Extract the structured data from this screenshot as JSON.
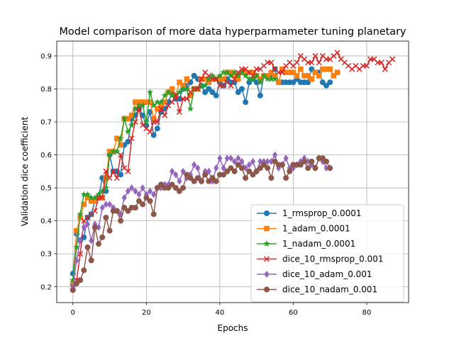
{
  "chart_data": {
    "type": "line",
    "title": "Model comparison of more data hyperparmameter tuning planetary",
    "xlabel": "Epochs",
    "ylabel": "Validation dice coefficient",
    "xlim": [
      -4.4,
      91.4
    ],
    "ylim": [
      0.152,
      0.945
    ],
    "xticks": [
      0,
      20,
      40,
      60,
      80
    ],
    "yticks": [
      0.2,
      0.3,
      0.4,
      0.5,
      0.6,
      0.7,
      0.8,
      0.9
    ],
    "xtick_labels": [
      "0",
      "20",
      "40",
      "60",
      "80"
    ],
    "ytick_labels": [
      "0.2",
      "0.3",
      "0.4",
      "0.5",
      "0.6",
      "0.7",
      "0.8",
      "0.9"
    ],
    "grid": true,
    "legend_position": "lower right",
    "series": [
      {
        "name": "1_rmsprop_0.0001",
        "color": "#1f77b4",
        "marker": "circle",
        "values": [
          0.24,
          0.36,
          0.34,
          0.35,
          0.41,
          0.42,
          0.46,
          0.47,
          0.53,
          0.49,
          0.6,
          0.55,
          0.55,
          0.54,
          0.63,
          0.64,
          0.71,
          0.72,
          0.74,
          0.72,
          0.69,
          0.73,
          0.66,
          0.68,
          0.73,
          0.74,
          0.76,
          0.79,
          0.77,
          0.77,
          0.8,
          0.81,
          0.82,
          0.84,
          0.83,
          0.81,
          0.79,
          0.8,
          0.79,
          0.78,
          0.82,
          0.81,
          0.83,
          0.82,
          0.82,
          0.79,
          0.8,
          0.76,
          0.82,
          0.83,
          0.82,
          0.78,
          0.84,
          0.84,
          0.84,
          0.86,
          0.82,
          0.82,
          0.82,
          0.82,
          0.82,
          0.83,
          0.82,
          0.82,
          0.82,
          0.86,
          0.85,
          0.85,
          0.82,
          0.81,
          0.82
        ]
      },
      {
        "name": "1_adam_0.0001",
        "color": "#ff7f0e",
        "marker": "square",
        "values": [
          0.21,
          0.37,
          0.41,
          0.45,
          0.47,
          0.46,
          0.46,
          0.47,
          0.47,
          0.53,
          0.61,
          0.61,
          0.65,
          0.63,
          0.71,
          0.71,
          0.72,
          0.76,
          0.76,
          0.76,
          0.76,
          0.76,
          0.71,
          0.74,
          0.75,
          0.76,
          0.79,
          0.8,
          0.78,
          0.82,
          0.81,
          0.83,
          0.78,
          0.8,
          0.8,
          0.83,
          0.83,
          0.82,
          0.83,
          0.83,
          0.83,
          0.83,
          0.85,
          0.85,
          0.84,
          0.83,
          0.85,
          0.85,
          0.85,
          0.85,
          0.84,
          0.83,
          0.84,
          0.84,
          0.85,
          0.84,
          0.82,
          0.86,
          0.85,
          0.85,
          0.85,
          0.84,
          0.86,
          0.84,
          0.84,
          0.83,
          0.85,
          0.84,
          0.86,
          0.86,
          0.86,
          0.84,
          0.85
        ]
      },
      {
        "name": "1_nadam_0.0001",
        "color": "#2ca02c",
        "marker": "star",
        "values": [
          0.22,
          0.32,
          0.42,
          0.48,
          0.48,
          0.47,
          0.47,
          0.48,
          0.49,
          0.5,
          0.6,
          0.61,
          0.61,
          0.65,
          0.71,
          0.67,
          0.69,
          0.74,
          0.75,
          0.75,
          0.7,
          0.79,
          0.75,
          0.76,
          0.76,
          0.78,
          0.79,
          0.78,
          0.78,
          0.79,
          0.8,
          0.8,
          0.74,
          0.8,
          0.8,
          0.81,
          0.81,
          0.83,
          0.84,
          0.83,
          0.84,
          0.85,
          0.85,
          0.84,
          0.85,
          0.84,
          0.85,
          0.84,
          0.83,
          0.83,
          0.84,
          0.82,
          0.84,
          0.83,
          0.83,
          0.83
        ]
      },
      {
        "name": "dice_10_rmsprop_0.001",
        "color": "#d62728",
        "marker": "x",
        "values": [
          0.2,
          0.22,
          0.3,
          0.4,
          0.41,
          0.42,
          0.43,
          0.47,
          0.47,
          0.55,
          0.53,
          0.55,
          0.53,
          0.6,
          0.56,
          0.55,
          0.65,
          0.7,
          0.74,
          0.69,
          0.68,
          0.67,
          0.7,
          0.7,
          0.74,
          0.72,
          0.75,
          0.76,
          0.78,
          0.73,
          0.77,
          0.77,
          0.79,
          0.8,
          0.8,
          0.83,
          0.85,
          0.84,
          0.83,
          0.83,
          0.81,
          0.81,
          0.82,
          0.81,
          0.83,
          0.85,
          0.86,
          0.86,
          0.85,
          0.84,
          0.86,
          0.86,
          0.87,
          0.88,
          0.88,
          0.86,
          0.85,
          0.85,
          0.87,
          0.88,
          0.87,
          0.88,
          0.9,
          0.89,
          0.88,
          0.88,
          0.9,
          0.88,
          0.9,
          0.89,
          0.89,
          0.9,
          0.91,
          0.89,
          0.88,
          0.87,
          0.86,
          0.87,
          0.86,
          0.87,
          0.87,
          0.89,
          0.89,
          0.88,
          0.88,
          0.86,
          0.88,
          0.89
        ]
      },
      {
        "name": "dice_10_adam_0.001",
        "color": "#9467bd",
        "marker": "diamond",
        "values": [
          0.2,
          0.28,
          0.34,
          0.38,
          0.39,
          0.34,
          0.39,
          0.38,
          0.44,
          0.45,
          0.45,
          0.44,
          0.43,
          0.42,
          0.47,
          0.49,
          0.5,
          0.49,
          0.48,
          0.5,
          0.48,
          0.49,
          0.48,
          0.5,
          0.5,
          0.51,
          0.51,
          0.55,
          0.54,
          0.52,
          0.55,
          0.53,
          0.54,
          0.57,
          0.56,
          0.52,
          0.55,
          0.55,
          0.52,
          0.56,
          0.59,
          0.56,
          0.59,
          0.59,
          0.58,
          0.59,
          0.58,
          0.56,
          0.57,
          0.58,
          0.55,
          0.58,
          0.58,
          0.58,
          0.58,
          0.6,
          0.56,
          0.57,
          0.59,
          0.56,
          0.56,
          0.57,
          0.58,
          0.59,
          0.58,
          0.57,
          0.56,
          0.59,
          0.58,
          0.56,
          0.56
        ]
      },
      {
        "name": "dice_10_nadam_0.001",
        "color": "#8c564b",
        "marker": "circle",
        "values": [
          0.19,
          0.21,
          0.22,
          0.25,
          0.32,
          0.28,
          0.38,
          0.33,
          0.35,
          0.41,
          0.37,
          0.43,
          0.43,
          0.4,
          0.44,
          0.43,
          0.44,
          0.44,
          0.46,
          0.45,
          0.47,
          0.46,
          0.42,
          0.5,
          0.51,
          0.5,
          0.5,
          0.51,
          0.5,
          0.49,
          0.5,
          0.54,
          0.53,
          0.52,
          0.53,
          0.52,
          0.54,
          0.52,
          0.53,
          0.52,
          0.54,
          0.54,
          0.55,
          0.56,
          0.55,
          0.57,
          0.56,
          0.53,
          0.55,
          0.54,
          0.55,
          0.56,
          0.57,
          0.56,
          0.53,
          0.58,
          0.57,
          0.57,
          0.53,
          0.55,
          0.57,
          0.57,
          0.57,
          0.58,
          0.56,
          0.58,
          0.56,
          0.59,
          0.59,
          0.58,
          0.56
        ]
      }
    ]
  }
}
